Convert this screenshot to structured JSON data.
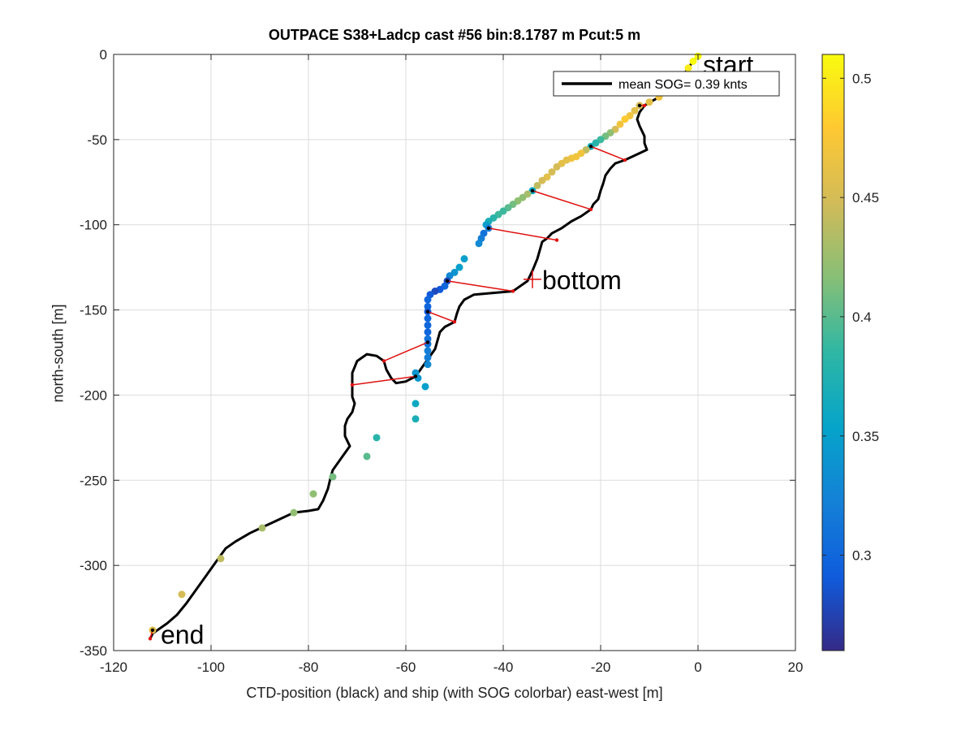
{
  "chart_data": {
    "type": "scatter",
    "title": "OUTPACE S38+Ladcp cast #56 bin:8.1787 m  Pcut:5 m",
    "xlabel": "CTD-position (black) and ship (with SOG colorbar) east-west [m]",
    "ylabel": "north-south [m]",
    "xlim": [
      -120,
      20
    ],
    "ylim": [
      -350,
      0
    ],
    "xticks": [
      -120,
      -100,
      -80,
      -60,
      -40,
      -20,
      0,
      20
    ],
    "yticks": [
      0,
      -50,
      -100,
      -150,
      -200,
      -250,
      -300,
      -350
    ],
    "grid": true,
    "legend": {
      "label": "mean SOG=  0.39 knts",
      "placement": "top-right"
    },
    "colorbar": {
      "range": [
        0.26,
        0.51
      ],
      "ticks": [
        0.3,
        0.35,
        0.4,
        0.45,
        0.5
      ],
      "colors": [
        "#352a87",
        "#0f5cdd",
        "#1481d6",
        "#06a4ca",
        "#2eb7a4",
        "#87bf77",
        "#d1bb59",
        "#fec832",
        "#f9fb0e"
      ]
    },
    "ctd_track": {
      "color": "#000000",
      "points": [
        [
          0,
          -1
        ],
        [
          -1,
          -4
        ],
        [
          -3,
          -12
        ],
        [
          -5,
          -20
        ],
        [
          -8,
          -25
        ],
        [
          -11,
          -30
        ],
        [
          -12,
          -34
        ],
        [
          -12.5,
          -38
        ],
        [
          -12,
          -42
        ],
        [
          -11,
          -48
        ],
        [
          -11,
          -52
        ],
        [
          -10.5,
          -56
        ],
        [
          -12,
          -58
        ],
        [
          -15,
          -62
        ],
        [
          -17,
          -64
        ],
        [
          -18,
          -67
        ],
        [
          -19,
          -71
        ],
        [
          -19.5,
          -76
        ],
        [
          -20,
          -80
        ],
        [
          -20.5,
          -85
        ],
        [
          -21.5,
          -88
        ],
        [
          -22,
          -91
        ],
        [
          -24,
          -95
        ],
        [
          -26,
          -98
        ],
        [
          -28,
          -102
        ],
        [
          -30,
          -105
        ],
        [
          -31,
          -108
        ],
        [
          -32,
          -110
        ],
        [
          -32.5,
          -115
        ],
        [
          -33,
          -120
        ],
        [
          -34,
          -127
        ],
        [
          -35,
          -133
        ],
        [
          -37,
          -137
        ],
        [
          -38,
          -139
        ],
        [
          -42,
          -140
        ],
        [
          -46,
          -141
        ],
        [
          -48,
          -144
        ],
        [
          -49,
          -148
        ],
        [
          -49.5,
          -152
        ],
        [
          -50,
          -157
        ],
        [
          -52,
          -160
        ],
        [
          -53,
          -163
        ],
        [
          -53.5,
          -168
        ],
        [
          -54,
          -173
        ],
        [
          -55,
          -177
        ],
        [
          -56,
          -181
        ],
        [
          -57.5,
          -187
        ],
        [
          -58,
          -189
        ],
        [
          -60,
          -192
        ],
        [
          -62,
          -193
        ],
        [
          -63,
          -190
        ],
        [
          -64,
          -185
        ],
        [
          -64.5,
          -180
        ],
        [
          -66,
          -177
        ],
        [
          -68,
          -176
        ],
        [
          -70,
          -180
        ],
        [
          -71,
          -187
        ],
        [
          -71,
          -194
        ],
        [
          -71,
          -201
        ],
        [
          -70.5,
          -205
        ],
        [
          -71,
          -210
        ],
        [
          -72,
          -214
        ],
        [
          -72.5,
          -218
        ],
        [
          -72.5,
          -224
        ],
        [
          -71.5,
          -230
        ],
        [
          -73,
          -236
        ],
        [
          -75,
          -244
        ],
        [
          -75.5,
          -249
        ],
        [
          -76,
          -255
        ],
        [
          -77,
          -262
        ],
        [
          -78,
          -267
        ],
        [
          -80,
          -268
        ],
        [
          -83,
          -269
        ],
        [
          -86,
          -273
        ],
        [
          -89,
          -277
        ],
        [
          -92,
          -281
        ],
        [
          -95,
          -286
        ],
        [
          -97,
          -290
        ],
        [
          -99,
          -298
        ],
        [
          -101,
          -306
        ],
        [
          -103,
          -314
        ],
        [
          -105,
          -322
        ],
        [
          -107,
          -329
        ],
        [
          -109,
          -334
        ],
        [
          -111,
          -338
        ],
        [
          -112,
          -340
        ],
        [
          -112.5,
          -343
        ]
      ]
    },
    "ship_points": [
      [
        0,
        -1,
        0.51
      ],
      [
        -1,
        -4,
        0.51
      ],
      [
        -2,
        -8,
        0.5
      ],
      [
        -4,
        -17,
        0.49
      ],
      [
        -6,
        -22,
        0.48
      ],
      [
        -8,
        -25,
        0.47
      ],
      [
        -10,
        -28,
        0.46
      ],
      [
        -12,
        -30,
        0.45
      ],
      [
        -13,
        -33,
        0.46
      ],
      [
        -14,
        -36,
        0.47
      ],
      [
        -15,
        -38,
        0.48
      ],
      [
        -16,
        -41,
        0.47
      ],
      [
        -17,
        -44,
        0.45
      ],
      [
        -18,
        -46,
        0.42
      ],
      [
        -19,
        -48,
        0.41
      ],
      [
        -20,
        -50,
        0.39
      ],
      [
        -21,
        -52,
        0.38
      ],
      [
        -22,
        -54,
        0.37
      ],
      [
        -23,
        -56,
        0.44
      ],
      [
        -24,
        -58,
        0.47
      ],
      [
        -25,
        -60,
        0.47
      ],
      [
        -26,
        -61,
        0.47
      ],
      [
        -27,
        -62,
        0.46
      ],
      [
        -28,
        -64,
        0.46
      ],
      [
        -29,
        -66,
        0.45
      ],
      [
        -30,
        -69,
        0.45
      ],
      [
        -31,
        -72,
        0.46
      ],
      [
        -32,
        -74,
        0.45
      ],
      [
        -33,
        -77,
        0.44
      ],
      [
        -34,
        -80,
        0.36
      ],
      [
        -35,
        -82,
        0.43
      ],
      [
        -36,
        -84,
        0.42
      ],
      [
        -37,
        -86,
        0.42
      ],
      [
        -38,
        -88,
        0.41
      ],
      [
        -39,
        -90,
        0.4
      ],
      [
        -40,
        -92,
        0.39
      ],
      [
        -41,
        -94,
        0.39
      ],
      [
        -42,
        -96,
        0.38
      ],
      [
        -43,
        -98,
        0.37
      ],
      [
        -43.5,
        -100,
        0.35
      ],
      [
        -43,
        -102,
        0.32
      ],
      [
        -44,
        -105,
        0.31
      ],
      [
        -44.5,
        -108,
        0.32
      ],
      [
        -45,
        -111,
        0.33
      ],
      [
        -48,
        -120,
        0.35
      ],
      [
        -49,
        -125,
        0.35
      ],
      [
        -50,
        -128,
        0.34
      ],
      [
        -51,
        -130,
        0.33
      ],
      [
        -51.5,
        -133,
        0.28
      ],
      [
        -52,
        -136,
        0.3
      ],
      [
        -53,
        -138,
        0.29
      ],
      [
        -54,
        -139,
        0.28
      ],
      [
        -55,
        -141,
        0.29
      ],
      [
        -55.5,
        -144,
        0.3
      ],
      [
        -55.5,
        -148,
        0.3
      ],
      [
        -55.5,
        -151,
        0.29
      ],
      [
        -55.5,
        -155,
        0.3
      ],
      [
        -55.5,
        -159,
        0.3
      ],
      [
        -55.5,
        -163,
        0.3
      ],
      [
        -55.5,
        -167,
        0.31
      ],
      [
        -55.5,
        -170,
        0.31
      ],
      [
        -55.5,
        -174,
        0.32
      ],
      [
        -55.5,
        -178,
        0.32
      ],
      [
        -55.5,
        -182,
        0.33
      ],
      [
        -58,
        -187,
        0.34
      ],
      [
        -57.5,
        -190,
        0.34
      ],
      [
        -56,
        -195,
        0.35
      ],
      [
        -58,
        -205,
        0.36
      ],
      [
        -58,
        -214,
        0.37
      ],
      [
        -66,
        -225,
        0.38
      ],
      [
        -68,
        -236,
        0.4
      ],
      [
        -75,
        -248,
        0.41
      ],
      [
        -79,
        -258,
        0.42
      ],
      [
        -83,
        -269,
        0.42
      ],
      [
        -89.5,
        -278,
        0.43
      ],
      [
        -98,
        -296,
        0.44
      ],
      [
        -106,
        -317,
        0.45
      ],
      [
        -112,
        -338,
        0.46
      ]
    ],
    "connectors": {
      "color": "#e01010",
      "segments": [
        [
          -12,
          -30,
          -11,
          -30
        ],
        [
          -22,
          -54,
          -15,
          -62
        ],
        [
          -34,
          -80,
          -22,
          -91
        ],
        [
          -43,
          -102,
          -29,
          -109
        ],
        [
          -51.5,
          -133,
          -38,
          -139
        ],
        [
          -55.5,
          -151,
          -50,
          -157
        ],
        [
          -55.5,
          -169,
          -64.5,
          -180
        ],
        [
          -58,
          -189,
          -71,
          -194
        ],
        [
          -112,
          -338,
          -112.5,
          -343
        ]
      ]
    },
    "annotations": [
      {
        "text": "start",
        "x": 0,
        "y": -2
      },
      {
        "text": "bottom",
        "x": -34,
        "y": -132
      },
      {
        "text": "end",
        "x": -112,
        "y": -343
      }
    ]
  }
}
